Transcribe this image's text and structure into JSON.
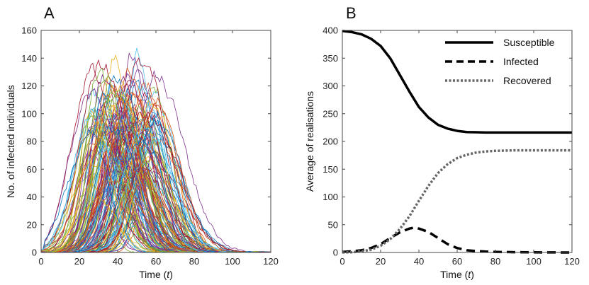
{
  "chart_data": [
    {
      "panel_label": "A",
      "type": "line",
      "title": "",
      "xlabel_prefix": "Time (",
      "xlabel_var": "t",
      "xlabel_suffix": ")",
      "ylabel": "No. of infected individuals",
      "xlim": [
        0,
        120
      ],
      "ylim": [
        0,
        160
      ],
      "xticks": [
        0,
        20,
        40,
        60,
        80,
        100,
        120
      ],
      "yticks": [
        0,
        20,
        40,
        60,
        80,
        100,
        120,
        140,
        160
      ],
      "n_realisations": 160,
      "approx_peak_range": [
        40,
        153
      ],
      "approx_peak_time_range": [
        20,
        60
      ],
      "colors": [
        "#0072BD",
        "#D95319",
        "#EDB120",
        "#7E2F8E",
        "#77AC30",
        "#4DBEEE",
        "#A2142F"
      ],
      "grid": false,
      "legend": "none"
    },
    {
      "panel_label": "B",
      "type": "line",
      "title": "",
      "xlabel_prefix": "Time (",
      "xlabel_var": "t",
      "xlabel_suffix": ")",
      "ylabel": "Average of realisations",
      "xlim": [
        0,
        120
      ],
      "ylim": [
        0,
        400
      ],
      "xticks": [
        0,
        20,
        40,
        60,
        80,
        100,
        120
      ],
      "yticks": [
        0,
        50,
        100,
        150,
        200,
        250,
        300,
        350,
        400
      ],
      "legend_position": "top-right",
      "series": [
        {
          "name": "Susceptible",
          "style": "solid",
          "color": "#000000",
          "x": [
            0,
            5,
            10,
            15,
            20,
            25,
            30,
            35,
            40,
            45,
            50,
            55,
            60,
            65,
            70,
            75,
            80,
            90,
            100,
            110,
            120
          ],
          "values": [
            399,
            397,
            393,
            385,
            372,
            350,
            320,
            290,
            262,
            243,
            230,
            223,
            219,
            217,
            216.5,
            216,
            216,
            216,
            216,
            216,
            216
          ]
        },
        {
          "name": "Infected",
          "style": "dashed",
          "color": "#000000",
          "x": [
            0,
            5,
            10,
            15,
            20,
            25,
            30,
            35,
            38,
            40,
            45,
            50,
            55,
            60,
            65,
            70,
            75,
            80,
            90,
            100,
            110,
            120
          ],
          "values": [
            1,
            2,
            4,
            8,
            15,
            26,
            36,
            43,
            45,
            43,
            37,
            26,
            15,
            8,
            4,
            2.5,
            1.5,
            1,
            0.5,
            0.2,
            0.1,
            0
          ]
        },
        {
          "name": "Recovered",
          "style": "dotted",
          "color": "#666666",
          "x": [
            0,
            5,
            10,
            15,
            20,
            25,
            30,
            35,
            40,
            45,
            50,
            55,
            60,
            65,
            70,
            75,
            80,
            85,
            90,
            100,
            110,
            120
          ],
          "values": [
            0,
            0.5,
            2,
            5,
            12,
            24,
            42,
            65,
            93,
            120,
            143,
            159,
            170,
            176,
            180,
            182,
            183,
            183.5,
            184,
            184,
            184,
            184
          ]
        }
      ]
    }
  ]
}
